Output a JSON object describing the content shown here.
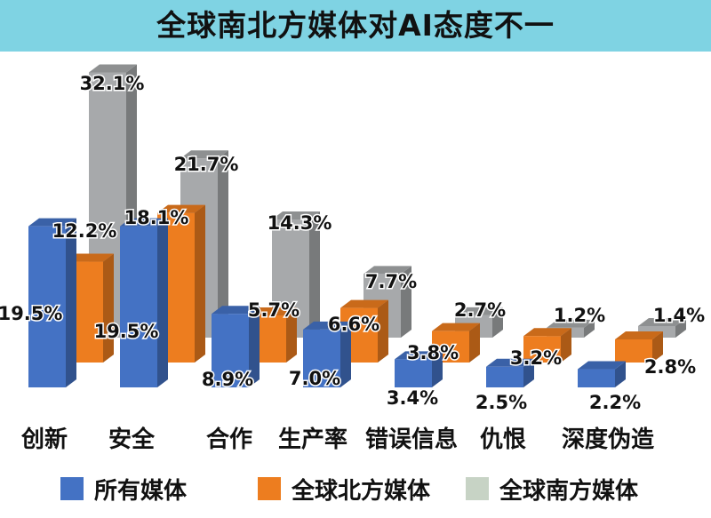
{
  "title": "全球南北方媒体对AI态度不一",
  "chart_data": {
    "type": "bar",
    "categories": [
      "创新",
      "安全",
      "合作",
      "生产率",
      "错误信息",
      "仇恨",
      "深度伪造"
    ],
    "series": [
      {
        "name": "所有媒体",
        "values": [
          19.5,
          19.5,
          8.9,
          7.0,
          3.4,
          2.5,
          2.2
        ],
        "labels": [
          "19.5%",
          "19.5%",
          "8.9%",
          "7.0%",
          "3.4%",
          "2.5%",
          "2.2%"
        ]
      },
      {
        "name": "全球北方媒体",
        "values": [
          12.2,
          18.1,
          5.7,
          6.6,
          3.8,
          3.2,
          2.8
        ],
        "labels": [
          "12.2%",
          "18.1%",
          "5.7%",
          "6.6%",
          "3.8%",
          "3.2%",
          "2.8%"
        ]
      },
      {
        "name": "全球南方媒体",
        "values": [
          32.1,
          21.7,
          14.3,
          7.7,
          2.7,
          1.2,
          1.4
        ],
        "labels": [
          "32.1%",
          "21.7%",
          "14.3%",
          "7.7%",
          "2.7%",
          "1.2%",
          "1.4%"
        ]
      }
    ],
    "legend_position": "bottom",
    "grid": false,
    "colors": [
      "#4472c4",
      "#ed7d1f",
      "#a5a5a5"
    ]
  }
}
